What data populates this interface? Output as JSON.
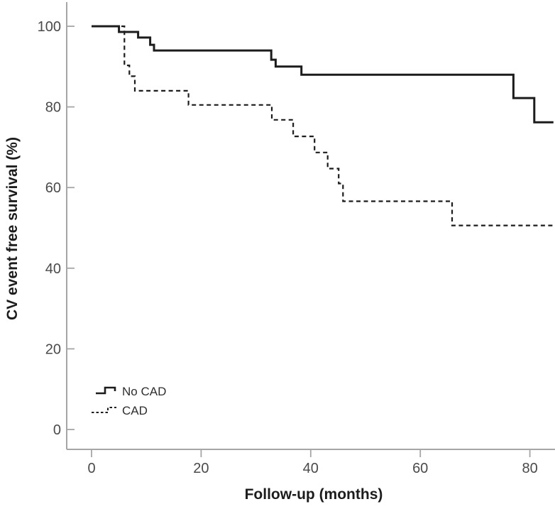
{
  "chart_data": {
    "type": "line",
    "subtype": "kaplan-meier-step",
    "title": "",
    "xlabel": "Follow-up (months)",
    "ylabel": "CV event free survival (%)",
    "xlim": [
      -4.5,
      85
    ],
    "ylim": [
      -5,
      106
    ],
    "x_ticks": [
      0,
      20,
      40,
      60,
      80
    ],
    "y_ticks": [
      0,
      20,
      40,
      60,
      80,
      100
    ],
    "grid": false,
    "legend_position": "lower-left",
    "colors": {
      "line": "#1c1c1c",
      "axis": "#a6a6a6",
      "tick_text": "#4a4a4a",
      "label_text": "#1c1c1c",
      "background": "#ffffff"
    },
    "series": [
      {
        "name": "No CAD",
        "style": "solid",
        "points": [
          [
            0,
            100
          ],
          [
            5,
            100
          ],
          [
            5,
            98.6
          ],
          [
            8.5,
            98.6
          ],
          [
            8.5,
            97.2
          ],
          [
            10.7,
            97.2
          ],
          [
            10.7,
            95.4
          ],
          [
            11.4,
            95.4
          ],
          [
            11.4,
            94.0
          ],
          [
            32.8,
            94.0
          ],
          [
            32.8,
            91.7
          ],
          [
            33.6,
            91.7
          ],
          [
            33.6,
            90.0
          ],
          [
            38.3,
            90.0
          ],
          [
            38.3,
            88.0
          ],
          [
            77.0,
            88.0
          ],
          [
            77.0,
            82.2
          ],
          [
            80.8,
            82.2
          ],
          [
            80.8,
            76.2
          ],
          [
            84.3,
            76.2
          ]
        ]
      },
      {
        "name": "CAD",
        "style": "dashed",
        "points": [
          [
            0,
            100
          ],
          [
            6.0,
            100
          ],
          [
            6.0,
            90.3
          ],
          [
            6.9,
            90.3
          ],
          [
            6.9,
            87.6
          ],
          [
            7.9,
            87.6
          ],
          [
            7.9,
            84.0
          ],
          [
            17.7,
            84.0
          ],
          [
            17.7,
            80.5
          ],
          [
            32.9,
            80.5
          ],
          [
            32.9,
            76.8
          ],
          [
            36.8,
            76.8
          ],
          [
            36.8,
            72.7
          ],
          [
            40.7,
            72.7
          ],
          [
            40.7,
            68.7
          ],
          [
            43.1,
            68.7
          ],
          [
            43.1,
            64.7
          ],
          [
            45.1,
            64.7
          ],
          [
            45.1,
            61.0
          ],
          [
            45.9,
            61.0
          ],
          [
            45.9,
            56.6
          ],
          [
            65.8,
            56.6
          ],
          [
            65.8,
            50.6
          ],
          [
            84.6,
            50.6
          ]
        ]
      }
    ]
  }
}
